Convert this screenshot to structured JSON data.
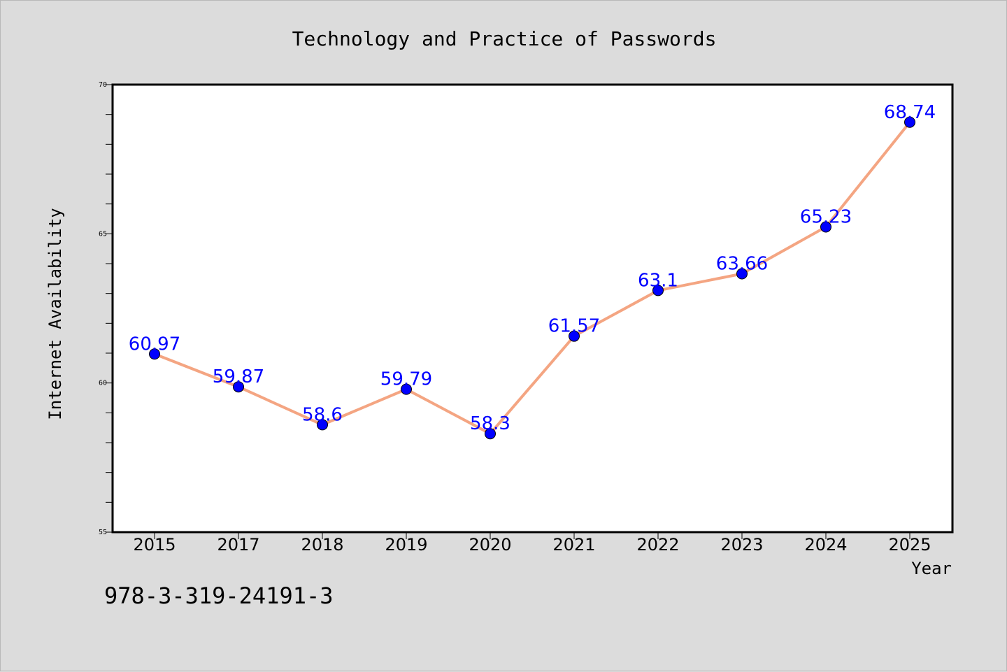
{
  "footer_code": "978-3-319-24191-3",
  "chart_data": {
    "type": "line",
    "title": "Technology and Practice of Passwords",
    "xlabel": "Year",
    "ylabel": "Internet Availability",
    "categories": [
      "2015",
      "2017",
      "2018",
      "2019",
      "2020",
      "2021",
      "2022",
      "2023",
      "2024",
      "2025"
    ],
    "series": [
      {
        "values": [
          60.97,
          59.87,
          58.6,
          59.79,
          58.3,
          61.57,
          63.1,
          63.66,
          65.23,
          68.74
        ],
        "labels": [
          "60.97",
          "59.87",
          "58.6",
          "59.79",
          "58.3",
          "61.57",
          "63.1",
          "63.66",
          "65.23",
          "68.74"
        ],
        "line_color": "#f4a582",
        "marker_color": "#0000ff",
        "label_color": "#0000ff"
      }
    ],
    "ylim": [
      55,
      70
    ],
    "yticks": [
      55,
      60,
      65,
      70
    ],
    "ytick_labels": [
      "55",
      "60",
      "65",
      "70"
    ],
    "grid": false,
    "background": "#dcdcdc",
    "plot_background": "#ffffff"
  }
}
